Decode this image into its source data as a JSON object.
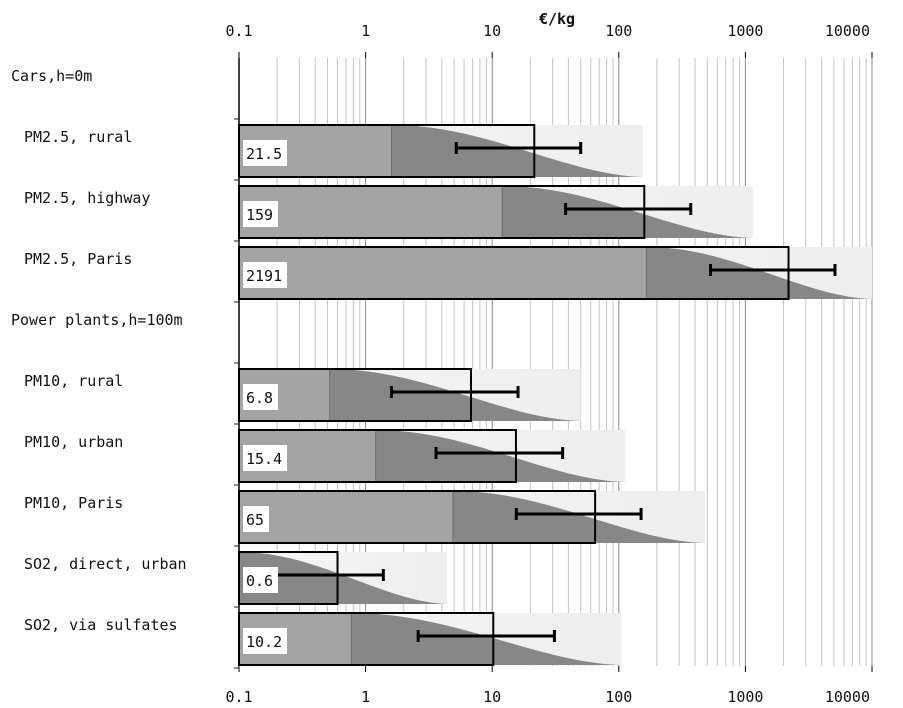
{
  "chart_data": {
    "type": "bar",
    "x_scale": "log",
    "xlim": [
      0.1,
      10000
    ],
    "xlabel": "€/kg",
    "x_ticks": [
      "0.1",
      "1",
      "10",
      "100",
      "1000",
      "10000"
    ],
    "grid": true,
    "rows": [
      {
        "label": "Cars,h=0m",
        "group_header": true
      },
      {
        "label": "PM2.5, rural",
        "value": 21.5,
        "value_label": "21.5",
        "err_low": 5.2,
        "err_high": 50,
        "dist_mode": 1.6,
        "dist_end": 155
      },
      {
        "label": "PM2.5, highway",
        "value": 159,
        "value_label": "159",
        "err_low": 38,
        "err_high": 370,
        "dist_mode": 12,
        "dist_end": 1150
      },
      {
        "label": "PM2.5, Paris",
        "value": 2191,
        "value_label": "2191",
        "err_low": 530,
        "err_high": 5100,
        "dist_mode": 165,
        "dist_end": 10000
      },
      {
        "label": "Power plants,h=100m",
        "group_header": true
      },
      {
        "label": "PM10, rural",
        "value": 6.8,
        "value_label": "6.8",
        "err_low": 1.6,
        "err_high": 16,
        "dist_mode": 0.52,
        "dist_end": 50
      },
      {
        "label": "PM10, urban",
        "value": 15.4,
        "value_label": "15.4",
        "err_low": 3.6,
        "err_high": 36,
        "dist_mode": 1.2,
        "dist_end": 112
      },
      {
        "label": "PM10, Paris",
        "value": 65,
        "value_label": "65",
        "err_low": 15.5,
        "err_high": 150,
        "dist_mode": 4.9,
        "dist_end": 480
      },
      {
        "label": "SO2, direct, urban",
        "value": 0.6,
        "value_label": "0.6",
        "err_low": 0.14,
        "err_high": 1.38,
        "dist_mode": 0.045,
        "dist_end": 4.4
      },
      {
        "label": "SO2, via sulfates",
        "value": 10.2,
        "value_label": "10.2",
        "err_low": 2.6,
        "err_high": 31,
        "dist_mode": 0.77,
        "dist_end": 105
      }
    ]
  }
}
